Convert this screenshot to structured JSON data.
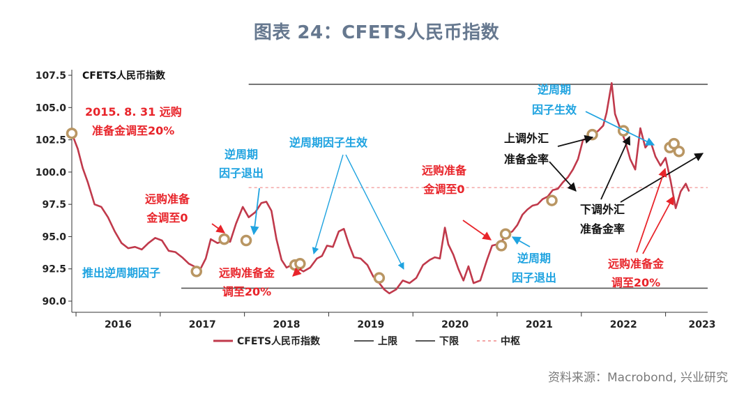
{
  "figure": {
    "title": "图表 24：CFETS人民币指数",
    "source": "资料来源：Macrobond, 兴业研究"
  },
  "colors": {
    "index_line": "#c0394b",
    "band_line": "#555555",
    "mid_line": "#f4a6a6",
    "marker": "#b99663",
    "red_note": "#e8242a",
    "blue_note": "#1fa3e0",
    "black_note": "#111111"
  },
  "chart_data": {
    "type": "line",
    "title": "CFETS人民币指数",
    "xlabel": "",
    "ylabel": "",
    "xlim": [
      2015.45,
      2023.0
    ],
    "ylim": [
      90.0,
      107.5
    ],
    "y_ticks": [
      "107.5",
      "105.0",
      "102.5",
      "100.0",
      "97.5",
      "95.0",
      "92.5",
      "90.0"
    ],
    "x_tick_labels": [
      {
        "label": "2016",
        "x": 2016.0
      },
      {
        "label": "2017",
        "x": 2017.0
      },
      {
        "label": "2018",
        "x": 2018.0
      },
      {
        "label": "2019",
        "x": 2019.0
      },
      {
        "label": "2020",
        "x": 2020.0
      },
      {
        "label": "2021",
        "x": 2021.0
      },
      {
        "label": "2022",
        "x": 2022.0
      },
      {
        "label": "2023",
        "x": 2023.0
      }
    ],
    "legend": [
      "CFETS人民币指数",
      "上限",
      "下限",
      "中枢"
    ],
    "legend_position": "bottom",
    "series": [
      {
        "name": "CFETS人民币指数",
        "points": [
          [
            2015.45,
            103.0
          ],
          [
            2015.52,
            101.8
          ],
          [
            2015.58,
            100.3
          ],
          [
            2015.64,
            99.2
          ],
          [
            2015.72,
            97.5
          ],
          [
            2015.8,
            97.3
          ],
          [
            2015.88,
            96.5
          ],
          [
            2015.96,
            95.4
          ],
          [
            2016.04,
            94.5
          ],
          [
            2016.12,
            94.1
          ],
          [
            2016.2,
            94.2
          ],
          [
            2016.28,
            94.0
          ],
          [
            2016.36,
            94.5
          ],
          [
            2016.44,
            94.9
          ],
          [
            2016.52,
            94.7
          ],
          [
            2016.6,
            93.9
          ],
          [
            2016.68,
            93.8
          ],
          [
            2016.76,
            93.4
          ],
          [
            2016.84,
            92.9
          ],
          [
            2016.9,
            92.7
          ],
          [
            2016.97,
            92.4
          ],
          [
            2017.04,
            93.3
          ],
          [
            2017.1,
            94.8
          ],
          [
            2017.18,
            94.5
          ],
          [
            2017.26,
            94.7
          ],
          [
            2017.33,
            94.6
          ],
          [
            2017.4,
            96.0
          ],
          [
            2017.48,
            97.3
          ],
          [
            2017.55,
            96.5
          ],
          [
            2017.63,
            96.9
          ],
          [
            2017.7,
            97.6
          ],
          [
            2017.76,
            97.7
          ],
          [
            2017.82,
            97.0
          ],
          [
            2017.88,
            94.8
          ],
          [
            2017.94,
            93.2
          ],
          [
            2018.0,
            92.6
          ],
          [
            2018.06,
            92.8
          ],
          [
            2018.12,
            92.6
          ],
          [
            2018.2,
            92.3
          ],
          [
            2018.28,
            92.6
          ],
          [
            2018.36,
            93.3
          ],
          [
            2018.42,
            93.5
          ],
          [
            2018.48,
            94.3
          ],
          [
            2018.55,
            94.2
          ],
          [
            2018.62,
            95.4
          ],
          [
            2018.68,
            95.6
          ],
          [
            2018.74,
            94.4
          ],
          [
            2018.8,
            93.4
          ],
          [
            2018.88,
            93.3
          ],
          [
            2018.96,
            92.8
          ],
          [
            2019.03,
            91.9
          ],
          [
            2019.1,
            91.4
          ],
          [
            2019.16,
            90.9
          ],
          [
            2019.22,
            90.6
          ],
          [
            2019.3,
            90.9
          ],
          [
            2019.38,
            91.6
          ],
          [
            2019.46,
            91.4
          ],
          [
            2019.54,
            91.8
          ],
          [
            2019.62,
            92.8
          ],
          [
            2019.7,
            93.2
          ],
          [
            2019.76,
            93.4
          ],
          [
            2019.82,
            93.3
          ],
          [
            2019.88,
            95.7
          ],
          [
            2019.92,
            94.4
          ],
          [
            2019.98,
            93.6
          ],
          [
            2020.04,
            92.5
          ],
          [
            2020.1,
            91.6
          ],
          [
            2020.16,
            92.7
          ],
          [
            2020.22,
            91.4
          ],
          [
            2020.3,
            91.6
          ],
          [
            2020.38,
            93.2
          ],
          [
            2020.44,
            94.3
          ],
          [
            2020.5,
            94.4
          ],
          [
            2020.56,
            94.7
          ],
          [
            2020.62,
            95.2
          ],
          [
            2020.68,
            95.4
          ],
          [
            2020.74,
            95.9
          ],
          [
            2020.8,
            96.7
          ],
          [
            2020.86,
            97.1
          ],
          [
            2020.92,
            97.4
          ],
          [
            2020.98,
            97.5
          ],
          [
            2021.04,
            97.9
          ],
          [
            2021.1,
            98.1
          ],
          [
            2021.16,
            98.6
          ],
          [
            2021.22,
            98.7
          ],
          [
            2021.28,
            99.2
          ],
          [
            2021.34,
            99.6
          ],
          [
            2021.4,
            100.2
          ],
          [
            2021.46,
            101.0
          ],
          [
            2021.52,
            102.5
          ],
          [
            2021.58,
            102.6
          ],
          [
            2021.64,
            102.9
          ],
          [
            2021.7,
            103.2
          ],
          [
            2021.76,
            103.6
          ],
          [
            2021.8,
            104.6
          ],
          [
            2021.86,
            106.9
          ],
          [
            2021.9,
            104.5
          ],
          [
            2021.96,
            103.4
          ],
          [
            2022.02,
            102.4
          ],
          [
            2022.08,
            101.0
          ],
          [
            2022.14,
            100.2
          ],
          [
            2022.2,
            103.4
          ],
          [
            2022.26,
            101.9
          ],
          [
            2022.32,
            102.4
          ],
          [
            2022.38,
            101.2
          ],
          [
            2022.44,
            100.5
          ],
          [
            2022.5,
            101.1
          ],
          [
            2022.56,
            99.3
          ],
          [
            2022.62,
            97.2
          ],
          [
            2022.68,
            98.5
          ],
          [
            2022.74,
            99.1
          ],
          [
            2022.78,
            98.5
          ]
        ]
      },
      {
        "name": "上限",
        "y": 106.8,
        "x_range": [
          2017.55,
          2023.0
        ]
      },
      {
        "name": "下限",
        "y": 91.0,
        "x_range": [
          2016.75,
          2023.0
        ]
      },
      {
        "name": "中枢",
        "y": 98.8,
        "x_range": [
          2017.55,
          2023.0
        ]
      }
    ],
    "event_markers": [
      {
        "x": 2015.45,
        "y": 103.0
      },
      {
        "x": 2016.93,
        "y": 92.3
      },
      {
        "x": 2017.26,
        "y": 94.8
      },
      {
        "x": 2017.52,
        "y": 94.7
      },
      {
        "x": 2018.1,
        "y": 92.8
      },
      {
        "x": 2018.16,
        "y": 92.9
      },
      {
        "x": 2019.1,
        "y": 91.8
      },
      {
        "x": 2020.55,
        "y": 94.3
      },
      {
        "x": 2020.6,
        "y": 95.2
      },
      {
        "x": 2021.15,
        "y": 97.8
      },
      {
        "x": 2021.63,
        "y": 102.9
      },
      {
        "x": 2022.0,
        "y": 103.2
      },
      {
        "x": 2022.55,
        "y": 101.9
      },
      {
        "x": 2022.6,
        "y": 102.2
      },
      {
        "x": 2022.66,
        "y": 101.6
      }
    ],
    "annotations": [
      {
        "id": "ann-1",
        "color": "red",
        "lines": [
          "2015. 8. 31  远购",
          "准备金调至20%"
        ]
      },
      {
        "id": "ann-2",
        "color": "blue",
        "lines": [
          "逆周期",
          "因子退出"
        ]
      },
      {
        "id": "ann-3",
        "color": "red",
        "lines": [
          "远购准备",
          "金调至0"
        ]
      },
      {
        "id": "ann-4",
        "color": "blue",
        "lines": [
          "推出逆周期因子"
        ]
      },
      {
        "id": "ann-5",
        "color": "red",
        "lines": [
          "远购准备金",
          "调至20%"
        ]
      },
      {
        "id": "ann-6",
        "color": "blue",
        "lines": [
          "逆周期因子生效"
        ]
      },
      {
        "id": "ann-7",
        "color": "red",
        "lines": [
          "远购准备",
          "金调至0"
        ]
      },
      {
        "id": "ann-8",
        "color": "blue",
        "lines": [
          "逆周期",
          "因子退出"
        ]
      },
      {
        "id": "ann-9",
        "color": "blue",
        "lines": [
          "逆周期",
          "因子生效"
        ]
      },
      {
        "id": "ann-10",
        "color": "black",
        "lines": [
          "上调外汇",
          "准备金率"
        ]
      },
      {
        "id": "ann-11",
        "color": "black",
        "lines": [
          "下调外汇",
          "准备金率"
        ]
      },
      {
        "id": "ann-12",
        "color": "red",
        "lines": [
          "远购准备金",
          "调至20%"
        ]
      }
    ]
  }
}
